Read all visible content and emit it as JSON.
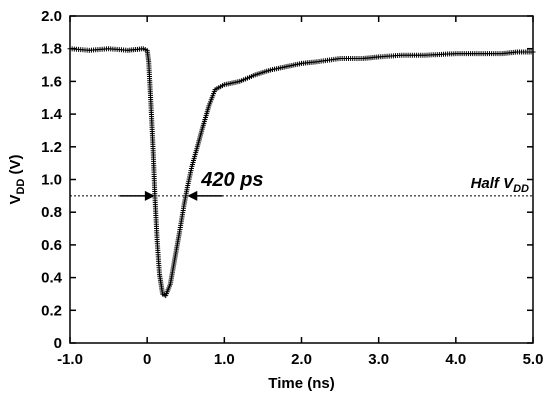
{
  "chart_data": {
    "type": "line",
    "xlabel": "Time (ns)",
    "ylabel": "V",
    "ylabel_sub": "DD",
    "ylabel_unit": " (V)",
    "xlim": [
      -1.0,
      5.0
    ],
    "ylim": [
      0,
      2.0
    ],
    "x_ticks": [
      -1.0,
      0,
      1.0,
      2.0,
      3.0,
      4.0,
      5.0
    ],
    "x_tick_labels": [
      "-1.0",
      "0",
      "1.0",
      "2.0",
      "3.0",
      "4.0",
      "5.0"
    ],
    "y_ticks": [
      0,
      0.2,
      0.4,
      0.6,
      0.8,
      1.0,
      1.2,
      1.4,
      1.6,
      1.8,
      2.0
    ],
    "y_tick_labels": [
      "0",
      "0.2",
      "0.4",
      "0.6",
      "0.8",
      "1.0",
      "1.2",
      "1.4",
      "1.6",
      "1.8",
      "2.0"
    ],
    "grid": false,
    "reference_line": {
      "y": 0.9,
      "label": "Half V",
      "label_sub": "DD",
      "style": "dotted"
    },
    "annotation": {
      "text": "420 ps",
      "x_start": 0.1,
      "x_end": 0.52,
      "y": 0.9
    },
    "series": [
      {
        "marker": "+",
        "color": "#000000",
        "points": [
          [
            -1.0,
            1.8
          ],
          [
            -0.75,
            1.79
          ],
          [
            -0.5,
            1.8
          ],
          [
            -0.25,
            1.79
          ],
          [
            -0.05,
            1.8
          ],
          [
            0.0,
            1.79
          ],
          [
            0.02,
            1.72
          ],
          [
            0.05,
            1.45
          ],
          [
            0.08,
            1.15
          ],
          [
            0.1,
            0.9
          ],
          [
            0.13,
            0.62
          ],
          [
            0.16,
            0.42
          ],
          [
            0.2,
            0.3
          ],
          [
            0.24,
            0.29
          ],
          [
            0.3,
            0.36
          ],
          [
            0.36,
            0.52
          ],
          [
            0.42,
            0.68
          ],
          [
            0.48,
            0.85
          ],
          [
            0.52,
            0.95
          ],
          [
            0.58,
            1.08
          ],
          [
            0.65,
            1.2
          ],
          [
            0.72,
            1.32
          ],
          [
            0.8,
            1.45
          ],
          [
            0.88,
            1.55
          ],
          [
            1.0,
            1.58
          ],
          [
            1.2,
            1.6
          ],
          [
            1.4,
            1.64
          ],
          [
            1.6,
            1.67
          ],
          [
            1.8,
            1.69
          ],
          [
            2.0,
            1.71
          ],
          [
            2.2,
            1.72
          ],
          [
            2.5,
            1.74
          ],
          [
            2.8,
            1.74
          ],
          [
            3.0,
            1.75
          ],
          [
            3.3,
            1.76
          ],
          [
            3.6,
            1.76
          ],
          [
            4.0,
            1.77
          ],
          [
            4.3,
            1.77
          ],
          [
            4.6,
            1.77
          ],
          [
            4.8,
            1.78
          ],
          [
            5.0,
            1.78
          ]
        ]
      }
    ]
  }
}
